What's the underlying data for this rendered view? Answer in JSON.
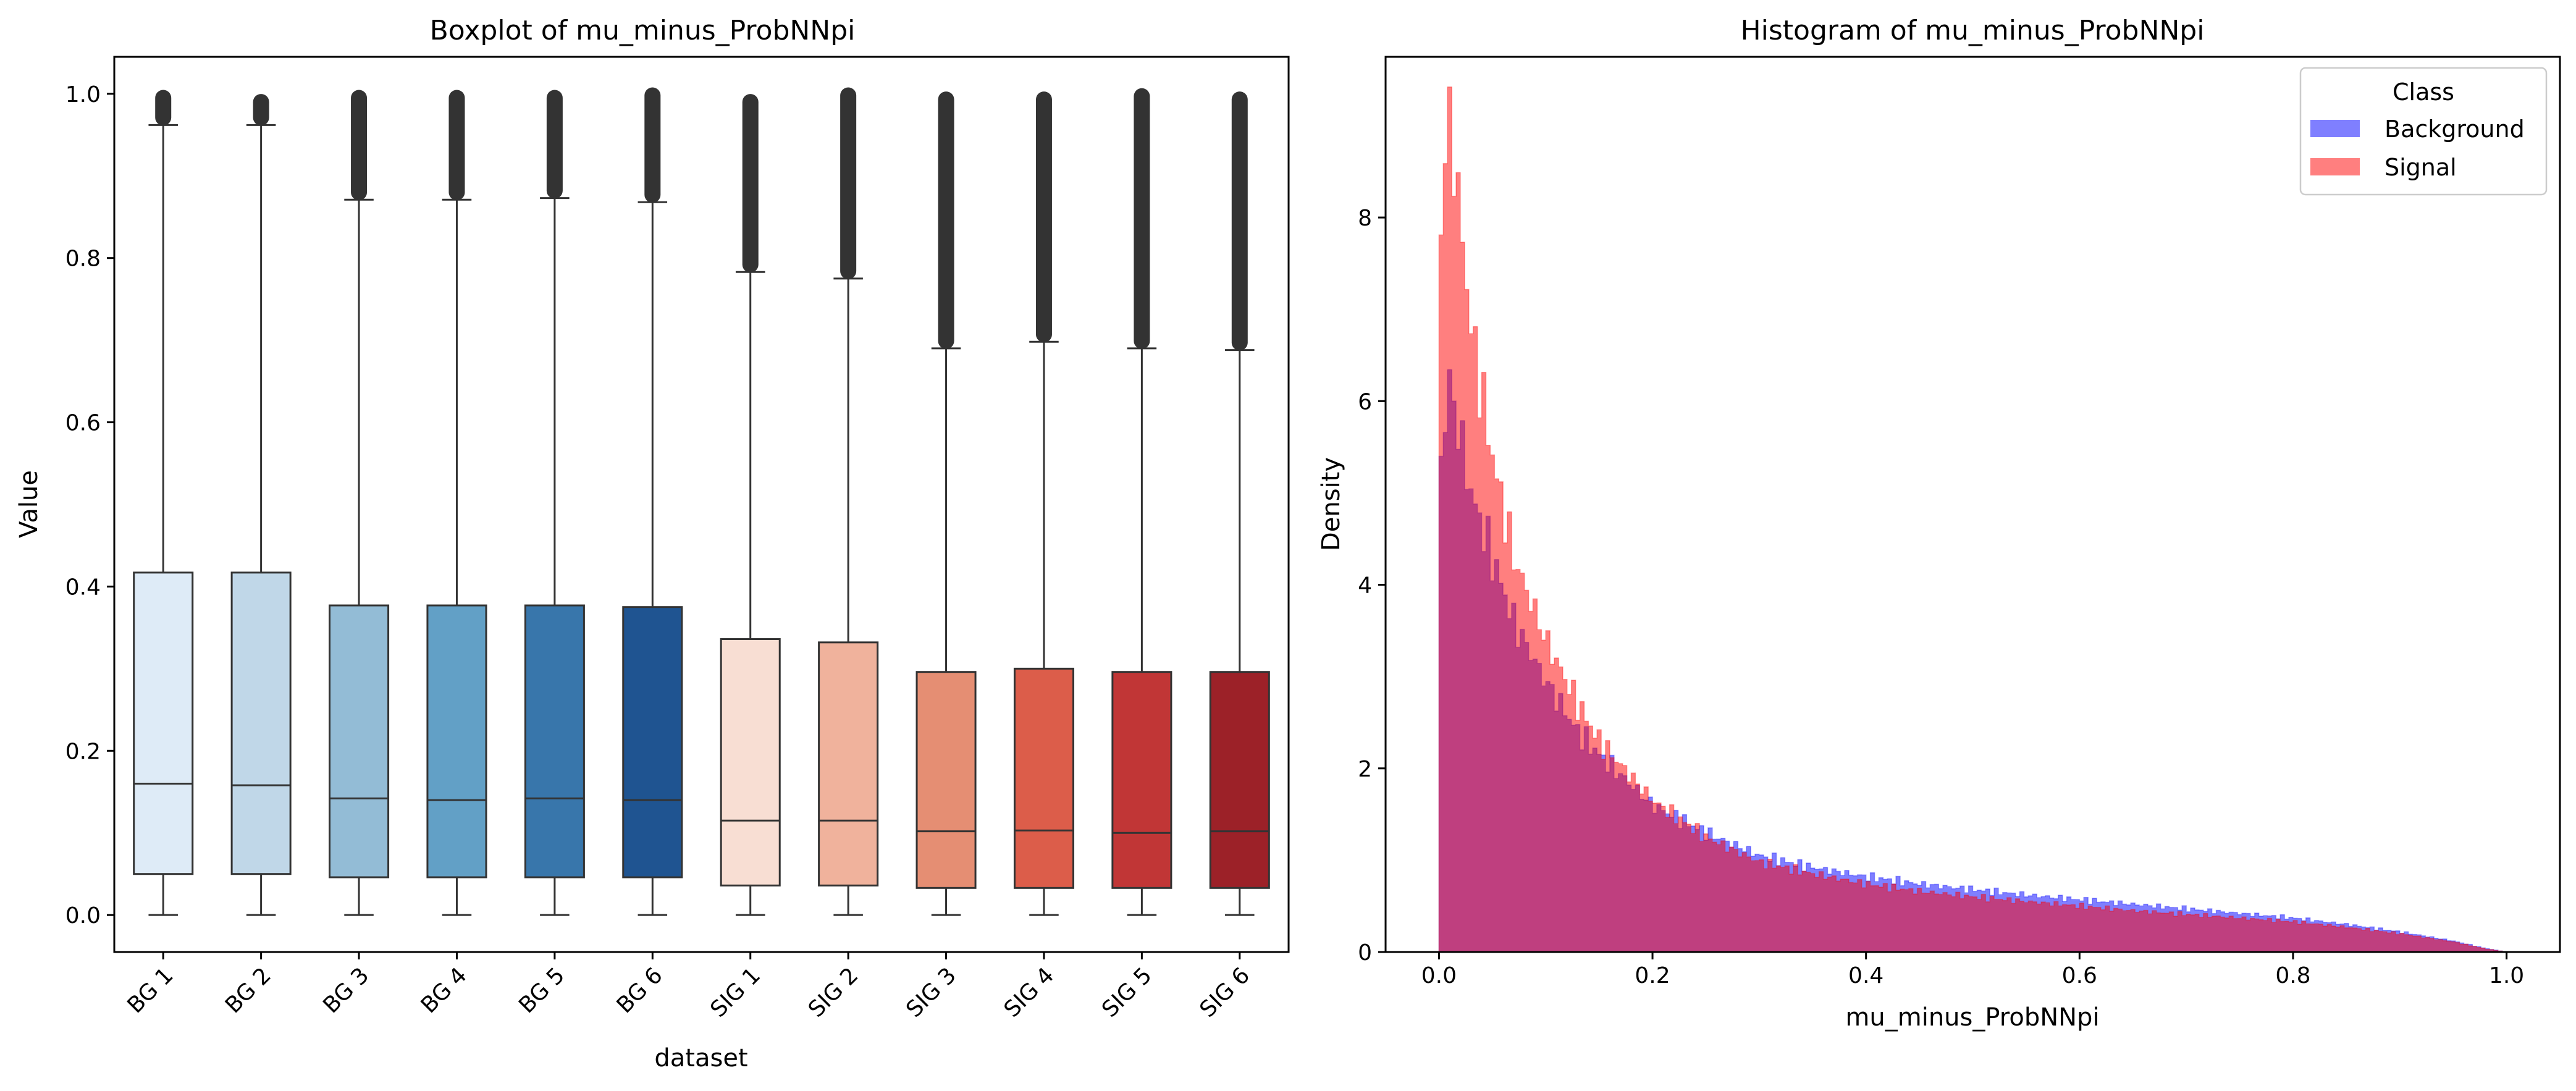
{
  "chart_data": [
    {
      "type": "box",
      "title": "Boxplot of mu_minus_ProbNNpi",
      "xlabel": "dataset",
      "ylabel": "Value",
      "ylim": [
        -0.045,
        1.045
      ],
      "yticks": [
        "0.0",
        "0.2",
        "0.4",
        "0.6",
        "0.8",
        "1.0"
      ],
      "grid": false,
      "boxes": [
        {
          "label": "BG 1",
          "min": 0.0,
          "q1": 0.05,
          "median": 0.16,
          "q3": 0.417,
          "whisker_high": 0.962,
          "outlier_max": 0.995,
          "color": "#deebf7"
        },
        {
          "label": "BG 2",
          "min": 0.0,
          "q1": 0.05,
          "median": 0.158,
          "q3": 0.417,
          "whisker_high": 0.962,
          "outlier_max": 0.99,
          "color": "#c0d7e8"
        },
        {
          "label": "BG 3",
          "min": 0.0,
          "q1": 0.046,
          "median": 0.142,
          "q3": 0.377,
          "whisker_high": 0.871,
          "outlier_max": 0.995,
          "color": "#93bcd6"
        },
        {
          "label": "BG 4",
          "min": 0.0,
          "q1": 0.046,
          "median": 0.14,
          "q3": 0.377,
          "whisker_high": 0.871,
          "outlier_max": 0.995,
          "color": "#62a0c6"
        },
        {
          "label": "BG 5",
          "min": 0.0,
          "q1": 0.046,
          "median": 0.142,
          "q3": 0.377,
          "whisker_high": 0.873,
          "outlier_max": 0.995,
          "color": "#3876ab"
        },
        {
          "label": "BG 6",
          "min": 0.0,
          "q1": 0.046,
          "median": 0.14,
          "q3": 0.375,
          "whisker_high": 0.868,
          "outlier_max": 0.998,
          "color": "#1f5491"
        },
        {
          "label": "SIG 1",
          "min": 0.0,
          "q1": 0.036,
          "median": 0.115,
          "q3": 0.336,
          "whisker_high": 0.783,
          "outlier_max": 0.99,
          "color": "#f8ded3"
        },
        {
          "label": "SIG 2",
          "min": 0.0,
          "q1": 0.036,
          "median": 0.115,
          "q3": 0.332,
          "whisker_high": 0.775,
          "outlier_max": 0.998,
          "color": "#f0b29c"
        },
        {
          "label": "SIG 3",
          "min": 0.0,
          "q1": 0.033,
          "median": 0.102,
          "q3": 0.296,
          "whisker_high": 0.69,
          "outlier_max": 0.993,
          "color": "#e58e73"
        },
        {
          "label": "SIG 4",
          "min": 0.0,
          "q1": 0.033,
          "median": 0.103,
          "q3": 0.3,
          "whisker_high": 0.698,
          "outlier_max": 0.993,
          "color": "#dc5d4a"
        },
        {
          "label": "SIG 5",
          "min": 0.0,
          "q1": 0.033,
          "median": 0.1,
          "q3": 0.296,
          "whisker_high": 0.69,
          "outlier_max": 0.997,
          "color": "#c13636"
        },
        {
          "label": "SIG 6",
          "min": 0.0,
          "q1": 0.033,
          "median": 0.102,
          "q3": 0.296,
          "whisker_high": 0.688,
          "outlier_max": 0.993,
          "color": "#9c2128"
        }
      ]
    },
    {
      "type": "histogram",
      "title": "Histogram of mu_minus_ProbNNpi",
      "xlabel": "mu_minus_ProbNNpi",
      "ylabel": "Density",
      "xlim": [
        -0.05,
        1.05
      ],
      "ylim": [
        0,
        9.75
      ],
      "xticks": [
        "0.0",
        "0.2",
        "0.4",
        "0.6",
        "0.8",
        "1.0"
      ],
      "yticks": [
        "0",
        "2",
        "4",
        "6",
        "8"
      ],
      "grid": false,
      "legend": {
        "title": "Class",
        "placement": "top-right"
      },
      "series": [
        {
          "name": "Background",
          "color": "#0000ff",
          "x": [
            0.0,
            0.01,
            0.02,
            0.03,
            0.05,
            0.07,
            0.1,
            0.13,
            0.15,
            0.2,
            0.25,
            0.3,
            0.35,
            0.4,
            0.45,
            0.5,
            0.55,
            0.6,
            0.65,
            0.7,
            0.75,
            0.8,
            0.85,
            0.9,
            0.95,
            0.98,
            1.0
          ],
          "density": [
            5.2,
            6.2,
            5.6,
            5.0,
            4.3,
            3.6,
            2.95,
            2.4,
            2.15,
            1.6,
            1.3,
            1.05,
            0.92,
            0.82,
            0.74,
            0.68,
            0.62,
            0.57,
            0.52,
            0.47,
            0.42,
            0.37,
            0.3,
            0.22,
            0.12,
            0.04,
            0.0
          ]
        },
        {
          "name": "Signal",
          "color": "#ff0000",
          "x": [
            0.0,
            0.01,
            0.02,
            0.03,
            0.05,
            0.07,
            0.1,
            0.13,
            0.15,
            0.2,
            0.25,
            0.3,
            0.35,
            0.4,
            0.45,
            0.5,
            0.55,
            0.6,
            0.65,
            0.7,
            0.75,
            0.8,
            0.85,
            0.9,
            0.95,
            0.98,
            1.0
          ],
          "density": [
            7.8,
            9.1,
            8.0,
            6.8,
            5.4,
            4.3,
            3.4,
            2.7,
            2.3,
            1.65,
            1.25,
            0.98,
            0.85,
            0.74,
            0.66,
            0.6,
            0.55,
            0.5,
            0.45,
            0.41,
            0.37,
            0.33,
            0.27,
            0.2,
            0.11,
            0.035,
            0.0
          ]
        }
      ]
    }
  ]
}
